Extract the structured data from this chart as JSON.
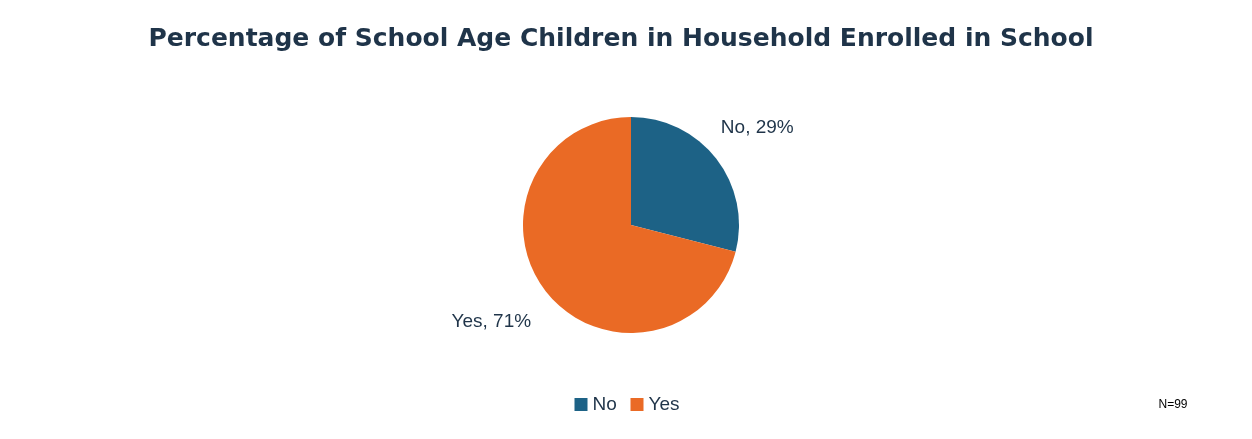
{
  "chart_data": {
    "type": "pie",
    "title": "Percentage of School Age Children in Household Enrolled in School",
    "categories": [
      "No",
      "Yes"
    ],
    "values": [
      29,
      71
    ],
    "colors": [
      "#1d6286",
      "#ea6a25"
    ],
    "value_labels": [
      "No, 29%",
      "Yes, 71%"
    ],
    "legend": "bottom",
    "annotations": [
      "N=99"
    ]
  }
}
